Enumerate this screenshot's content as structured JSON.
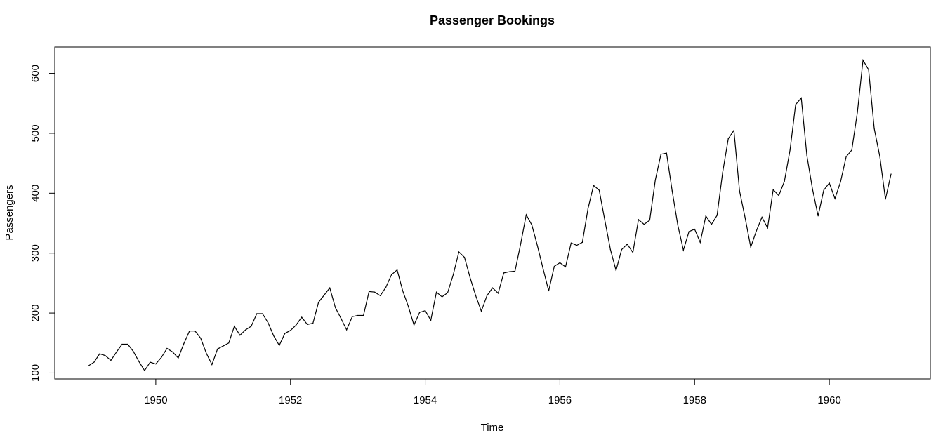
{
  "chart_data": {
    "type": "line",
    "title": "Passenger Bookings",
    "xlabel": "Time",
    "ylabel": "Passengers",
    "xlim": [
      1948.5,
      1961.5
    ],
    "ylim": [
      90,
      644
    ],
    "xticks": [
      1950,
      1952,
      1954,
      1956,
      1958,
      1960
    ],
    "yticks": [
      100,
      200,
      300,
      400,
      500,
      600
    ],
    "grid": false,
    "line_color": "#000000",
    "x_start": 1949.0,
    "x_step": 0.0833333,
    "series": [
      {
        "values": [
          112,
          118,
          132,
          129,
          121,
          135,
          148,
          148,
          136,
          119,
          104,
          118,
          115,
          126,
          141,
          135,
          125,
          149,
          170,
          170,
          158,
          133,
          114,
          140,
          145,
          150,
          178,
          163,
          172,
          178,
          199,
          199,
          184,
          162,
          146,
          166,
          171,
          180,
          193,
          181,
          183,
          218,
          230,
          242,
          209,
          191,
          172,
          194,
          196,
          196,
          236,
          235,
          229,
          243,
          264,
          272,
          237,
          211,
          180,
          201,
          204,
          188,
          235,
          227,
          234,
          264,
          302,
          293,
          259,
          229,
          203,
          229,
          242,
          233,
          267,
          269,
          270,
          315,
          364,
          347,
          312,
          274,
          237,
          278,
          284,
          277,
          317,
          313,
          318,
          374,
          413,
          405,
          355,
          306,
          271,
          306,
          315,
          301,
          356,
          348,
          355,
          422,
          465,
          467,
          404,
          347,
          305,
          336,
          340,
          318,
          362,
          348,
          363,
          435,
          491,
          505,
          404,
          359,
          310,
          337,
          360,
          342,
          406,
          396,
          420,
          472,
          548,
          559,
          463,
          407,
          362,
          405,
          417,
          391,
          419,
          461,
          472,
          535,
          622,
          606,
          508,
          461,
          390,
          432
        ]
      }
    ]
  }
}
